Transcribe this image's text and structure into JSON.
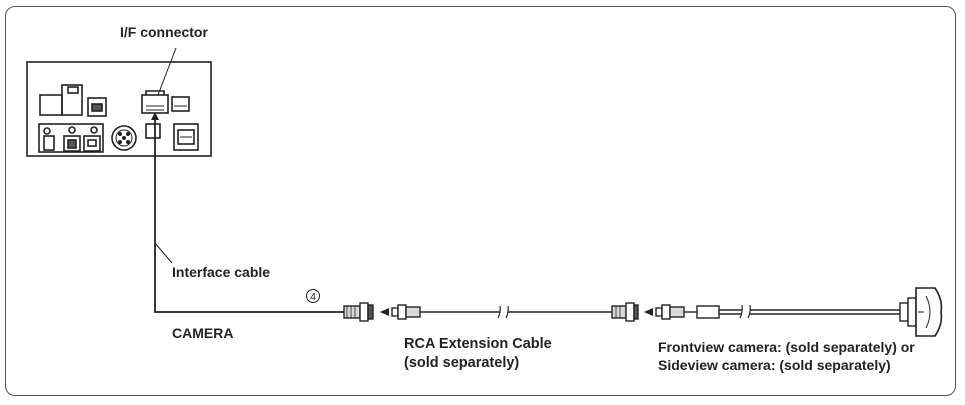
{
  "labels": {
    "if_connector": "I/F connector",
    "interface_cable": "Interface cable",
    "circle_number": "4",
    "camera": "CAMERA",
    "rca_cable_line1": "RCA Extension Cable",
    "rca_cable_line2": "(sold separately)",
    "camera_desc_line1": "Frontview camera: (sold separately) or",
    "camera_desc_line2": "Sideview camera: (sold separately)"
  },
  "colors": {
    "line": "#222222",
    "frame": "#555555",
    "fill_light": "#d9d9d9",
    "fill_dark": "#555555"
  }
}
